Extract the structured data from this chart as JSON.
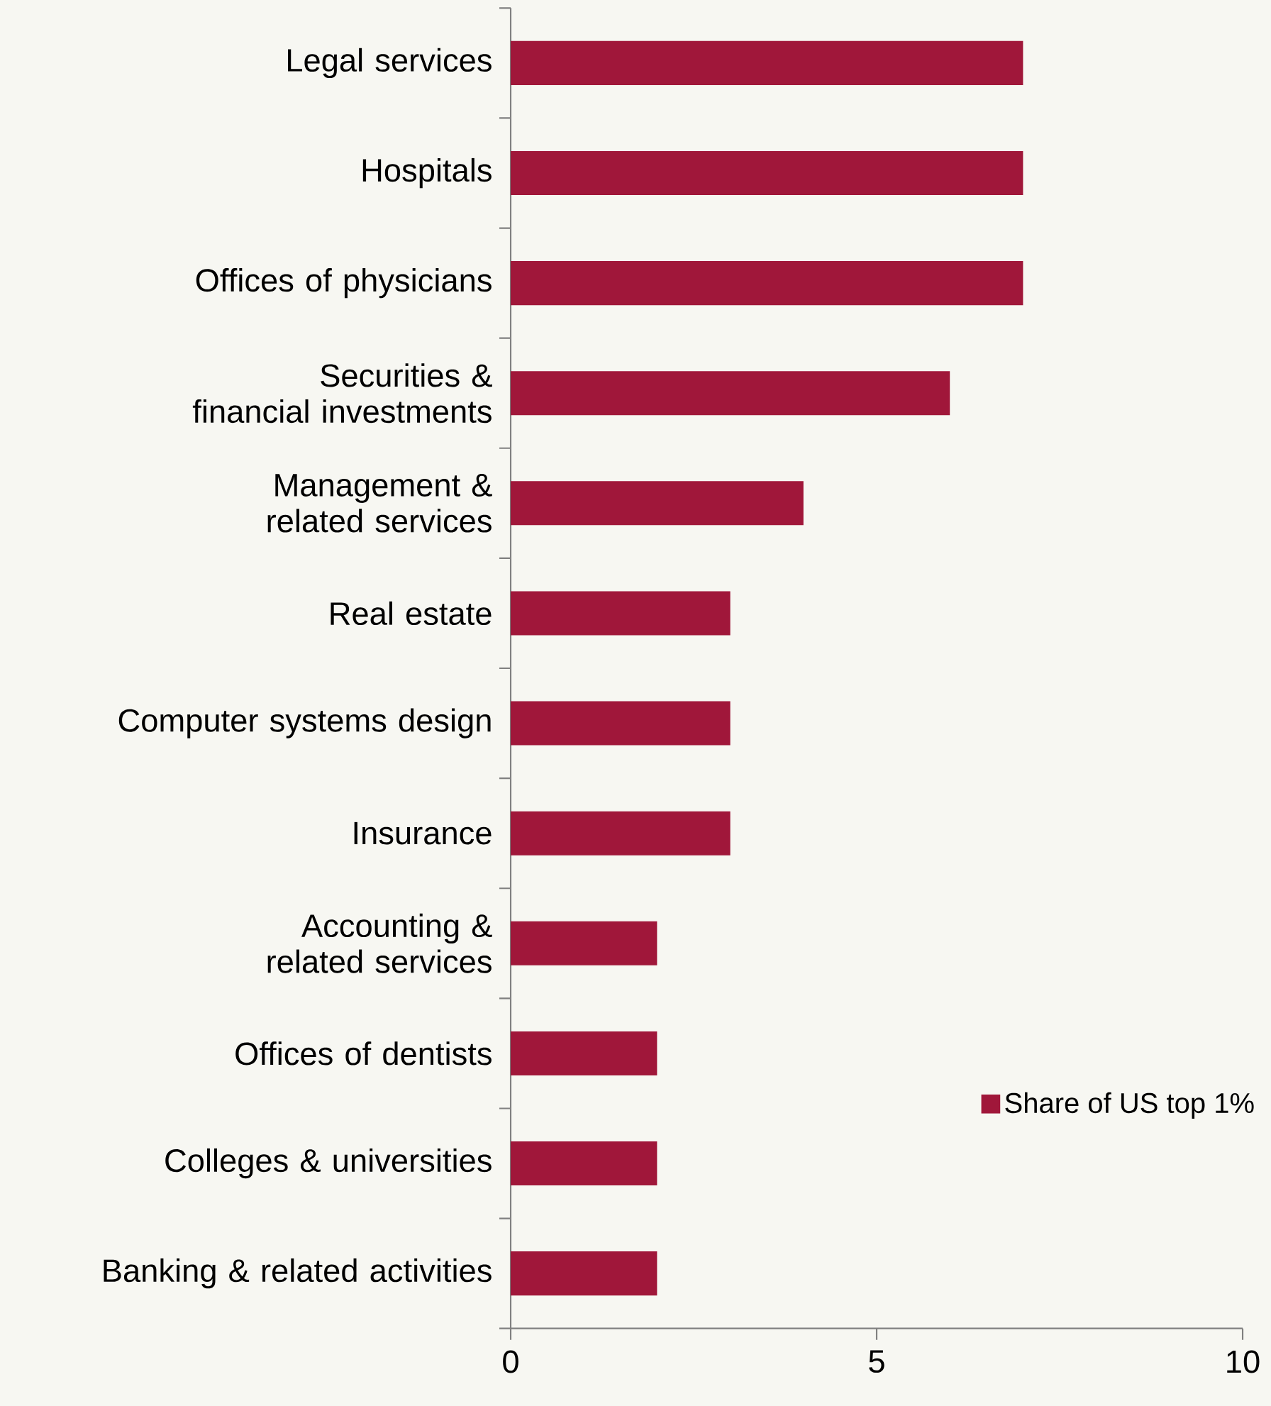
{
  "chart_data": {
    "type": "bar",
    "orientation": "horizontal",
    "categories": [
      "Legal services",
      "Hospitals",
      "Offices of physicians",
      "Securities & financial investments",
      "Management & related services",
      "Real estate",
      "Computer systems design",
      "Insurance",
      "Accounting & related services",
      "Offices of dentists",
      "Colleges & universities",
      "Banking & related activities"
    ],
    "series": [
      {
        "name": "Share of US top 1%",
        "color": "#a0173a",
        "values": [
          7,
          7,
          7,
          6,
          4,
          3,
          3,
          3,
          2,
          2,
          2,
          2
        ]
      }
    ],
    "xlim": [
      0,
      10
    ],
    "xticks": [
      0,
      5,
      10
    ],
    "grid": false,
    "legend": "right"
  }
}
